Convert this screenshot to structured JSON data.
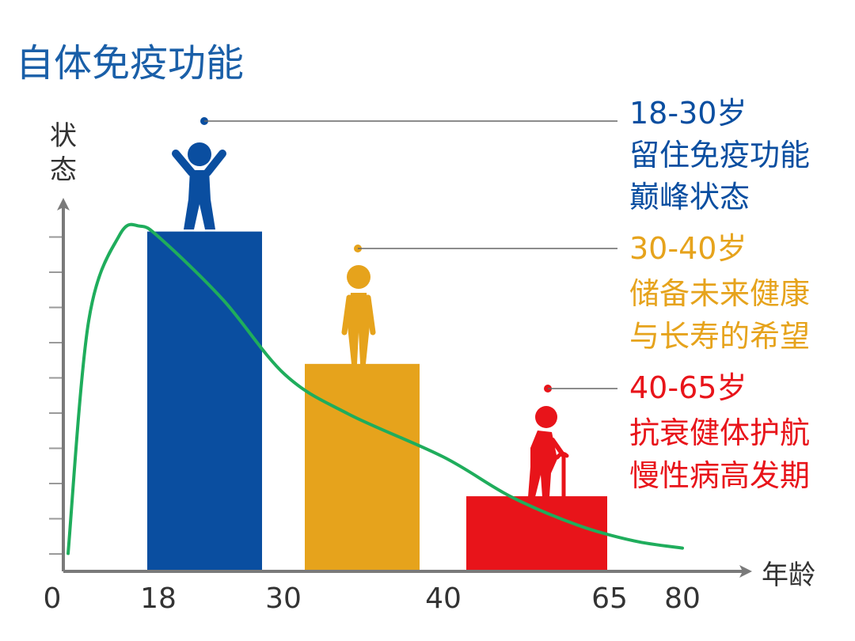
{
  "chart_data": {
    "type": "bar",
    "title": "自体免疫功能",
    "ylabel": "状态",
    "xlabel": "年龄",
    "x_ticks": [
      "0",
      "18",
      "30",
      "40",
      "65",
      "80"
    ],
    "x_tick_values": [
      0,
      18,
      30,
      40,
      65,
      80
    ],
    "xlim": [
      0,
      80
    ],
    "ylim": [
      0,
      10
    ],
    "grid": false,
    "bars": [
      {
        "x_start": 18,
        "x_end": 30,
        "value": 9.5,
        "color": "#0a4ea0"
      },
      {
        "x_start": 30,
        "x_end": 40,
        "value": 5.8,
        "color": "#e6a31c"
      },
      {
        "x_start": 40,
        "x_end": 65,
        "value": 2.1,
        "color": "#e8141a"
      }
    ],
    "curve": {
      "color": "#1fad5c",
      "points": [
        [
          0,
          0.5
        ],
        [
          4,
          7.0
        ],
        [
          10,
          9.4
        ],
        [
          14,
          9.65
        ],
        [
          18,
          9.3
        ],
        [
          24,
          7.6
        ],
        [
          30,
          5.5
        ],
        [
          34,
          4.4
        ],
        [
          40,
          3.2
        ],
        [
          50,
          2.1
        ],
        [
          60,
          1.3
        ],
        [
          70,
          0.85
        ],
        [
          80,
          0.65
        ]
      ]
    },
    "annotations": [
      {
        "age": "18-30岁",
        "line1": "留住免疫功能",
        "line2": "巅峰状态",
        "color": "#0a4ea0",
        "figure": "person-celebrating-icon"
      },
      {
        "age": "30-40岁",
        "line1": "储备未来健康",
        "line2": "与长寿的希望",
        "color": "#e6a31c",
        "figure": "person-standing-icon"
      },
      {
        "age": "40-65岁",
        "line1": "抗衰健体护航",
        "line2": "慢性病高发期",
        "color": "#e8141a",
        "figure": "elderly-person-cane-icon"
      }
    ]
  }
}
